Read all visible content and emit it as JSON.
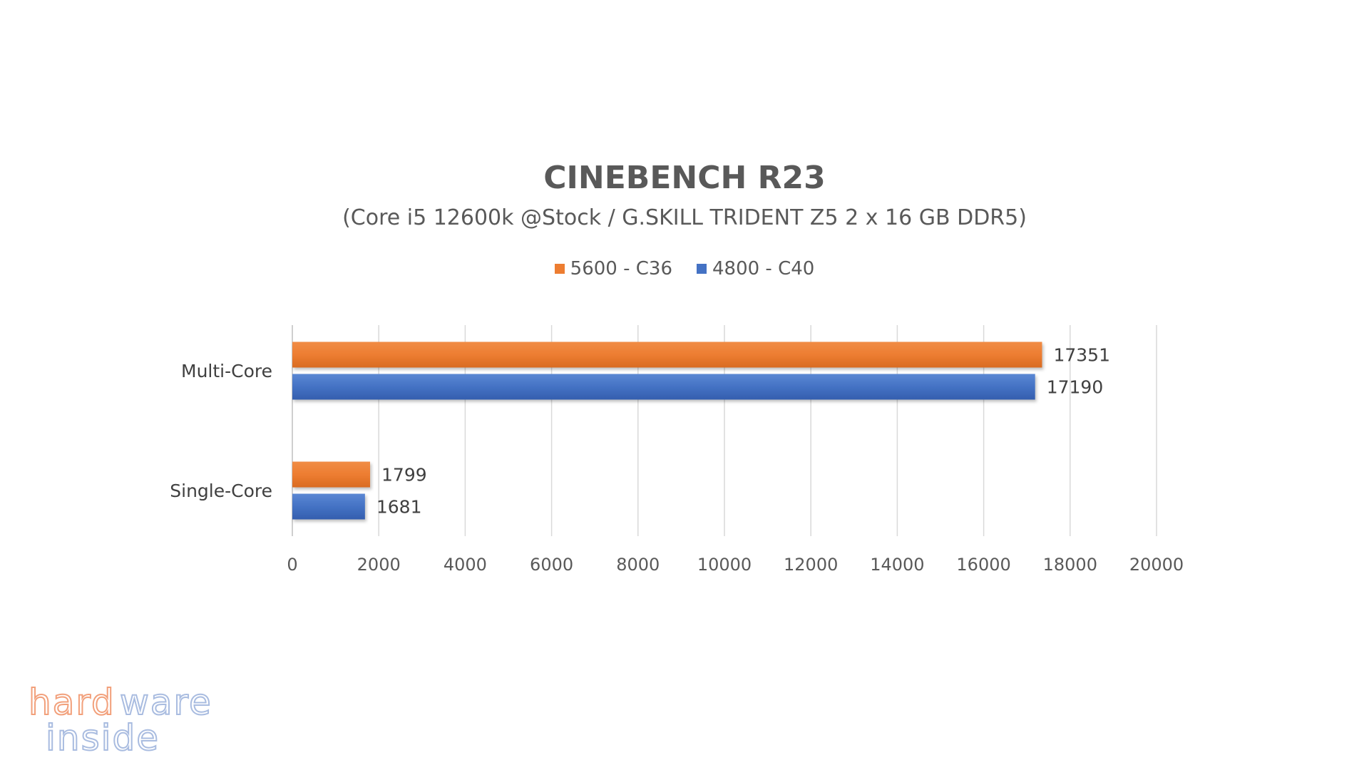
{
  "chart_data": {
    "type": "bar",
    "orientation": "horizontal",
    "title": "CINEBENCH R23",
    "subtitle": "(Core i5 12600k @Stock / G.SKILL TRIDENT Z5  2 x 16 GB DDR5)",
    "categories": [
      "Multi-Core",
      "Single-Core"
    ],
    "series": [
      {
        "name": "5600 - C36",
        "values": [
          17351,
          1799
        ],
        "color": "#ED7D31"
      },
      {
        "name": "4800 - C40",
        "values": [
          17190,
          1681
        ],
        "color": "#4472C4"
      }
    ],
    "xlim": [
      0,
      20000
    ],
    "xticks": [
      0,
      2000,
      4000,
      6000,
      8000,
      10000,
      12000,
      14000,
      16000,
      18000,
      20000
    ],
    "grid": true,
    "legend_position": "top-center",
    "data_labels": true
  },
  "watermark": {
    "line1": "hardware",
    "line2": "inside",
    "color_warm": "#F2A07B",
    "color_cool": "#A9BCE0"
  }
}
